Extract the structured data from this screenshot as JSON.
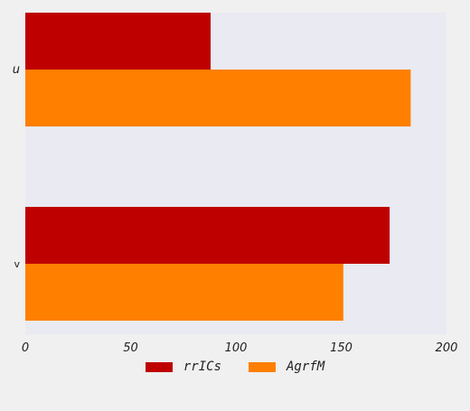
{
  "chart_data": {
    "type": "bar",
    "orientation": "horizontal",
    "categories": [
      "u",
      "v"
    ],
    "series": [
      {
        "name": "rrICs",
        "values": [
          88,
          173
        ],
        "color": "#bf0000"
      },
      {
        "name": "AgrfM",
        "values": [
          183,
          151
        ],
        "color": "#ff7f00"
      }
    ],
    "xlim": [
      0,
      200
    ],
    "xticks": [
      0,
      50,
      100,
      150,
      200
    ],
    "grid": false,
    "legend_position": "bottom-center",
    "plot_background": "#eaeaf2"
  }
}
